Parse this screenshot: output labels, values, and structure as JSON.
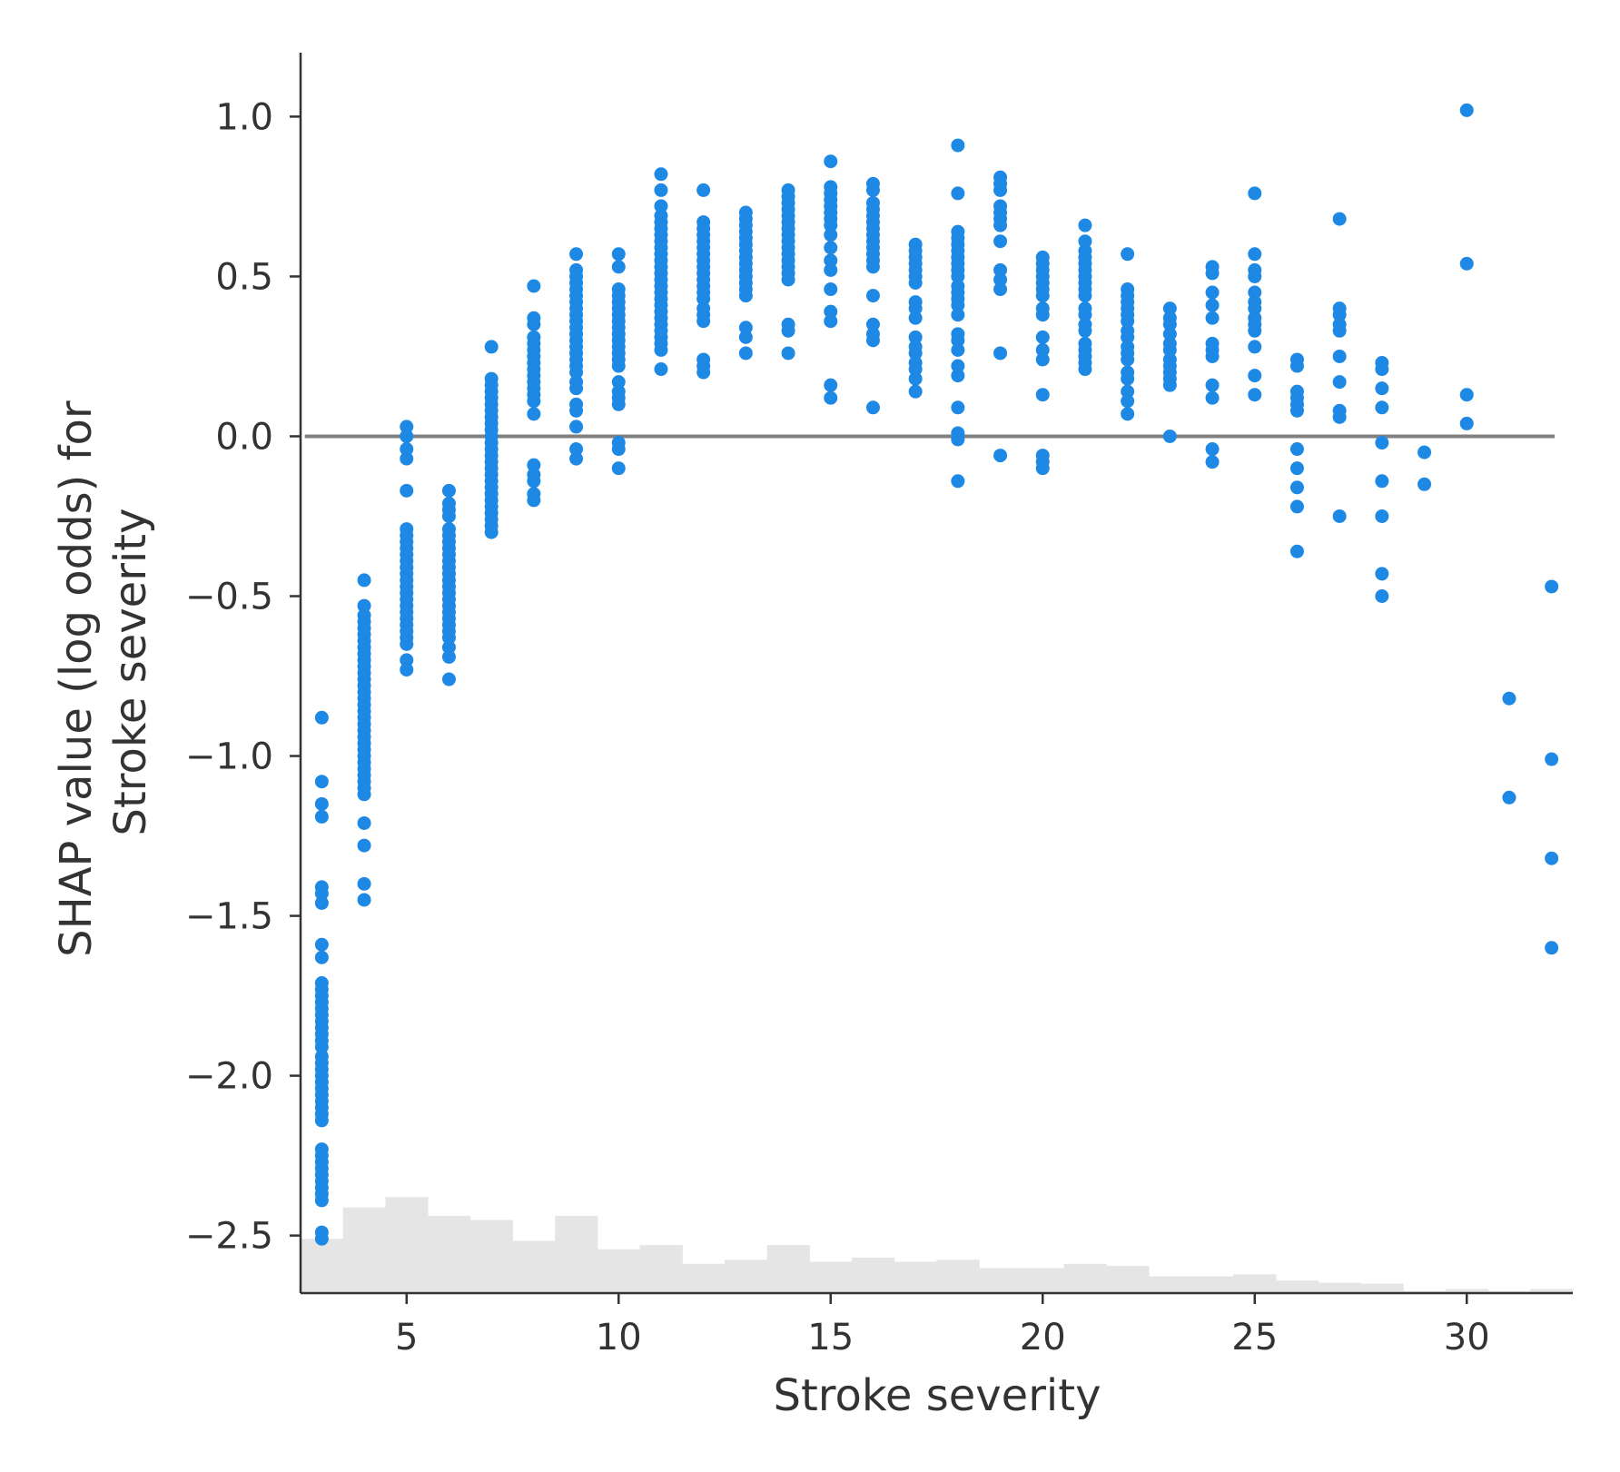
{
  "chart_data": {
    "type": "scatter",
    "xlabel": "Stroke severity",
    "ylabel_lines": [
      "SHAP value (log odds) for",
      "Stroke severity"
    ],
    "xlim": [
      2.5,
      32.5
    ],
    "ylim": [
      -2.68,
      1.2
    ],
    "xticks": [
      5,
      10,
      15,
      20,
      25,
      30
    ],
    "xtick_labels": [
      "5",
      "10",
      "15",
      "20",
      "25",
      "30"
    ],
    "yticks": [
      1.0,
      0.5,
      0.0,
      -0.5,
      -1.0,
      -1.5,
      -2.0,
      -2.5
    ],
    "ytick_labels": [
      "1.0",
      "0.5",
      "0.0",
      "−0.5",
      "−1.0",
      "−1.5",
      "−2.0",
      "−2.5"
    ],
    "zero_line": 0,
    "grid": false,
    "colors": {
      "points": "#1e88e5",
      "zero_line": "#808080",
      "histogram": "#e5e5e5",
      "axis": "#333333"
    },
    "histogram": {
      "note": "distribution of Stroke severity shown as relative bar heights (0-1)",
      "bins": [
        {
          "x0": 2.5,
          "x1": 3.5,
          "h": 0.26
        },
        {
          "x0": 3.5,
          "x1": 4.5,
          "h": 0.41
        },
        {
          "x0": 4.5,
          "x1": 5.5,
          "h": 0.46
        },
        {
          "x0": 5.5,
          "x1": 6.5,
          "h": 0.37
        },
        {
          "x0": 6.5,
          "x1": 7.5,
          "h": 0.35
        },
        {
          "x0": 7.5,
          "x1": 8.5,
          "h": 0.25
        },
        {
          "x0": 8.5,
          "x1": 9.5,
          "h": 0.37
        },
        {
          "x0": 9.5,
          "x1": 10.5,
          "h": 0.21
        },
        {
          "x0": 10.5,
          "x1": 11.5,
          "h": 0.23
        },
        {
          "x0": 11.5,
          "x1": 12.5,
          "h": 0.14
        },
        {
          "x0": 12.5,
          "x1": 13.5,
          "h": 0.16
        },
        {
          "x0": 13.5,
          "x1": 14.5,
          "h": 0.23
        },
        {
          "x0": 14.5,
          "x1": 15.5,
          "h": 0.15
        },
        {
          "x0": 15.5,
          "x1": 16.5,
          "h": 0.17
        },
        {
          "x0": 16.5,
          "x1": 17.5,
          "h": 0.15
        },
        {
          "x0": 17.5,
          "x1": 18.5,
          "h": 0.16
        },
        {
          "x0": 18.5,
          "x1": 19.5,
          "h": 0.12
        },
        {
          "x0": 19.5,
          "x1": 20.5,
          "h": 0.12
        },
        {
          "x0": 20.5,
          "x1": 21.5,
          "h": 0.14
        },
        {
          "x0": 21.5,
          "x1": 22.5,
          "h": 0.13
        },
        {
          "x0": 22.5,
          "x1": 23.5,
          "h": 0.08
        },
        {
          "x0": 23.5,
          "x1": 24.5,
          "h": 0.08
        },
        {
          "x0": 24.5,
          "x1": 25.5,
          "h": 0.09
        },
        {
          "x0": 25.5,
          "x1": 26.5,
          "h": 0.06
        },
        {
          "x0": 26.5,
          "x1": 27.5,
          "h": 0.05
        },
        {
          "x0": 27.5,
          "x1": 28.5,
          "h": 0.045
        },
        {
          "x0": 28.5,
          "x1": 29.5,
          "h": 0.01
        },
        {
          "x0": 29.5,
          "x1": 30.5,
          "h": 0.02
        },
        {
          "x0": 30.5,
          "x1": 31.5,
          "h": 0.01
        },
        {
          "x0": 31.5,
          "x1": 32.5,
          "h": 0.02
        }
      ]
    },
    "series": [
      {
        "x": 3,
        "y": [
          -0.88,
          -1.08,
          -1.15,
          -1.19,
          -1.41,
          -1.43,
          -1.46,
          -1.59,
          -1.63,
          -1.71,
          -1.73,
          -1.75,
          -1.77,
          -1.79,
          -1.81,
          -1.83,
          -1.85,
          -1.87,
          -1.89,
          -1.91,
          -1.94,
          -1.96,
          -1.98,
          -2.0,
          -2.02,
          -2.04,
          -2.06,
          -2.08,
          -2.1,
          -2.12,
          -2.14,
          -2.23,
          -2.25,
          -2.27,
          -2.29,
          -2.31,
          -2.33,
          -2.35,
          -2.37,
          -2.39,
          -2.49,
          -2.51
        ]
      },
      {
        "x": 4,
        "y": [
          -0.45,
          -0.53,
          -0.56,
          -0.58,
          -0.6,
          -0.62,
          -0.64,
          -0.66,
          -0.68,
          -0.7,
          -0.72,
          -0.74,
          -0.76,
          -0.78,
          -0.8,
          -0.82,
          -0.84,
          -0.86,
          -0.88,
          -0.9,
          -0.92,
          -0.94,
          -0.96,
          -0.98,
          -1.0,
          -1.02,
          -1.04,
          -1.06,
          -1.08,
          -1.1,
          -1.12,
          -1.21,
          -1.28,
          -1.4,
          -1.45
        ]
      },
      {
        "x": 5,
        "y": [
          0.03,
          0.0,
          -0.04,
          -0.07,
          -0.17,
          -0.29,
          -0.31,
          -0.33,
          -0.35,
          -0.37,
          -0.39,
          -0.41,
          -0.43,
          -0.45,
          -0.47,
          -0.49,
          -0.51,
          -0.53,
          -0.55,
          -0.57,
          -0.59,
          -0.61,
          -0.63,
          -0.65,
          -0.7,
          -0.73
        ]
      },
      {
        "x": 6,
        "y": [
          -0.17,
          -0.21,
          -0.23,
          -0.25,
          -0.29,
          -0.31,
          -0.33,
          -0.35,
          -0.37,
          -0.39,
          -0.41,
          -0.43,
          -0.45,
          -0.47,
          -0.49,
          -0.51,
          -0.53,
          -0.55,
          -0.57,
          -0.59,
          -0.61,
          -0.63,
          -0.66,
          -0.69,
          -0.76
        ]
      },
      {
        "x": 7,
        "y": [
          0.28,
          0.18,
          0.16,
          0.14,
          0.12,
          0.1,
          0.08,
          0.06,
          0.04,
          0.02,
          0.0,
          -0.02,
          -0.04,
          -0.06,
          -0.08,
          -0.1,
          -0.12,
          -0.14,
          -0.16,
          -0.18,
          -0.2,
          -0.22,
          -0.24,
          -0.26,
          -0.28,
          -0.3
        ]
      },
      {
        "x": 8,
        "y": [
          0.47,
          0.37,
          0.35,
          0.31,
          0.29,
          0.27,
          0.25,
          0.23,
          0.21,
          0.19,
          0.17,
          0.15,
          0.13,
          0.11,
          0.07,
          -0.09,
          -0.12,
          -0.14,
          -0.18,
          -0.2
        ]
      },
      {
        "x": 9,
        "y": [
          0.57,
          0.52,
          0.5,
          0.48,
          0.46,
          0.44,
          0.42,
          0.4,
          0.38,
          0.36,
          0.34,
          0.32,
          0.3,
          0.28,
          0.26,
          0.24,
          0.22,
          0.2,
          0.17,
          0.15,
          0.1,
          0.08,
          0.03,
          -0.04,
          -0.07
        ]
      },
      {
        "x": 10,
        "y": [
          0.57,
          0.53,
          0.46,
          0.44,
          0.42,
          0.4,
          0.38,
          0.36,
          0.34,
          0.32,
          0.3,
          0.28,
          0.26,
          0.24,
          0.22,
          0.17,
          0.14,
          0.12,
          0.1,
          -0.02,
          -0.04,
          -0.1
        ]
      },
      {
        "x": 11,
        "y": [
          0.82,
          0.77,
          0.72,
          0.69,
          0.67,
          0.65,
          0.63,
          0.61,
          0.59,
          0.57,
          0.55,
          0.53,
          0.51,
          0.49,
          0.47,
          0.45,
          0.43,
          0.41,
          0.39,
          0.37,
          0.35,
          0.33,
          0.31,
          0.29,
          0.27,
          0.21
        ]
      },
      {
        "x": 12,
        "y": [
          0.77,
          0.67,
          0.65,
          0.63,
          0.61,
          0.59,
          0.57,
          0.55,
          0.53,
          0.51,
          0.49,
          0.47,
          0.45,
          0.43,
          0.4,
          0.38,
          0.36,
          0.24,
          0.22,
          0.2
        ]
      },
      {
        "x": 13,
        "y": [
          0.7,
          0.68,
          0.66,
          0.64,
          0.62,
          0.6,
          0.58,
          0.56,
          0.54,
          0.52,
          0.5,
          0.48,
          0.46,
          0.44,
          0.34,
          0.31,
          0.26
        ]
      },
      {
        "x": 14,
        "y": [
          0.77,
          0.75,
          0.73,
          0.71,
          0.69,
          0.67,
          0.65,
          0.63,
          0.61,
          0.59,
          0.57,
          0.55,
          0.53,
          0.51,
          0.49,
          0.35,
          0.33,
          0.26
        ]
      },
      {
        "x": 15,
        "y": [
          0.86,
          0.78,
          0.76,
          0.74,
          0.72,
          0.7,
          0.68,
          0.66,
          0.63,
          0.59,
          0.55,
          0.52,
          0.46,
          0.39,
          0.36,
          0.16,
          0.12
        ]
      },
      {
        "x": 16,
        "y": [
          0.79,
          0.77,
          0.73,
          0.71,
          0.69,
          0.67,
          0.65,
          0.63,
          0.61,
          0.59,
          0.57,
          0.55,
          0.53,
          0.44,
          0.35,
          0.32,
          0.3,
          0.09
        ]
      },
      {
        "x": 17,
        "y": [
          0.6,
          0.58,
          0.56,
          0.54,
          0.52,
          0.5,
          0.48,
          0.42,
          0.4,
          0.37,
          0.31,
          0.28,
          0.26,
          0.23,
          0.21,
          0.18,
          0.14
        ]
      },
      {
        "x": 18,
        "y": [
          0.91,
          0.76,
          0.64,
          0.62,
          0.6,
          0.58,
          0.56,
          0.54,
          0.52,
          0.5,
          0.47,
          0.45,
          0.43,
          0.41,
          0.38,
          0.32,
          0.3,
          0.27,
          0.22,
          0.19,
          0.09,
          0.01,
          -0.01,
          -0.14
        ]
      },
      {
        "x": 19,
        "y": [
          0.81,
          0.79,
          0.77,
          0.72,
          0.7,
          0.68,
          0.66,
          0.61,
          0.52,
          0.49,
          0.46,
          0.26,
          -0.06
        ]
      },
      {
        "x": 20,
        "y": [
          0.56,
          0.54,
          0.52,
          0.5,
          0.48,
          0.46,
          0.44,
          0.4,
          0.38,
          0.31,
          0.27,
          0.24,
          0.13,
          -0.06,
          -0.08,
          -0.1
        ]
      },
      {
        "x": 21,
        "y": [
          0.66,
          0.61,
          0.58,
          0.56,
          0.54,
          0.52,
          0.5,
          0.48,
          0.46,
          0.44,
          0.4,
          0.38,
          0.35,
          0.33,
          0.29,
          0.27,
          0.25,
          0.23,
          0.21
        ]
      },
      {
        "x": 22,
        "y": [
          0.57,
          0.46,
          0.44,
          0.42,
          0.4,
          0.38,
          0.36,
          0.33,
          0.31,
          0.28,
          0.26,
          0.24,
          0.2,
          0.18,
          0.14,
          0.11,
          0.07
        ]
      },
      {
        "x": 23,
        "y": [
          0.4,
          0.37,
          0.35,
          0.32,
          0.29,
          0.27,
          0.24,
          0.22,
          0.2,
          0.18,
          0.16,
          0.0
        ]
      },
      {
        "x": 24,
        "y": [
          0.53,
          0.51,
          0.45,
          0.41,
          0.37,
          0.29,
          0.27,
          0.25,
          0.16,
          0.12,
          -0.04,
          -0.08
        ]
      },
      {
        "x": 25,
        "y": [
          0.76,
          0.57,
          0.52,
          0.5,
          0.45,
          0.42,
          0.4,
          0.37,
          0.35,
          0.33,
          0.28,
          0.19,
          0.13
        ]
      },
      {
        "x": 26,
        "y": [
          0.24,
          0.22,
          0.14,
          0.12,
          0.1,
          0.08,
          -0.04,
          -0.1,
          -0.16,
          -0.22,
          -0.36
        ]
      },
      {
        "x": 27,
        "y": [
          0.68,
          0.4,
          0.38,
          0.35,
          0.33,
          0.25,
          0.17,
          0.08,
          0.06,
          -0.25
        ]
      },
      {
        "x": 28,
        "y": [
          0.23,
          0.21,
          0.15,
          0.09,
          -0.02,
          -0.14,
          -0.25,
          -0.43,
          -0.5
        ]
      },
      {
        "x": 29,
        "y": [
          -0.05,
          -0.15
        ]
      },
      {
        "x": 30,
        "y": [
          1.02,
          0.54,
          0.13,
          0.04
        ]
      },
      {
        "x": 31,
        "y": [
          -0.82,
          -1.13
        ]
      },
      {
        "x": 32,
        "y": [
          -0.47,
          -1.01,
          -1.32,
          -1.6
        ]
      }
    ]
  }
}
